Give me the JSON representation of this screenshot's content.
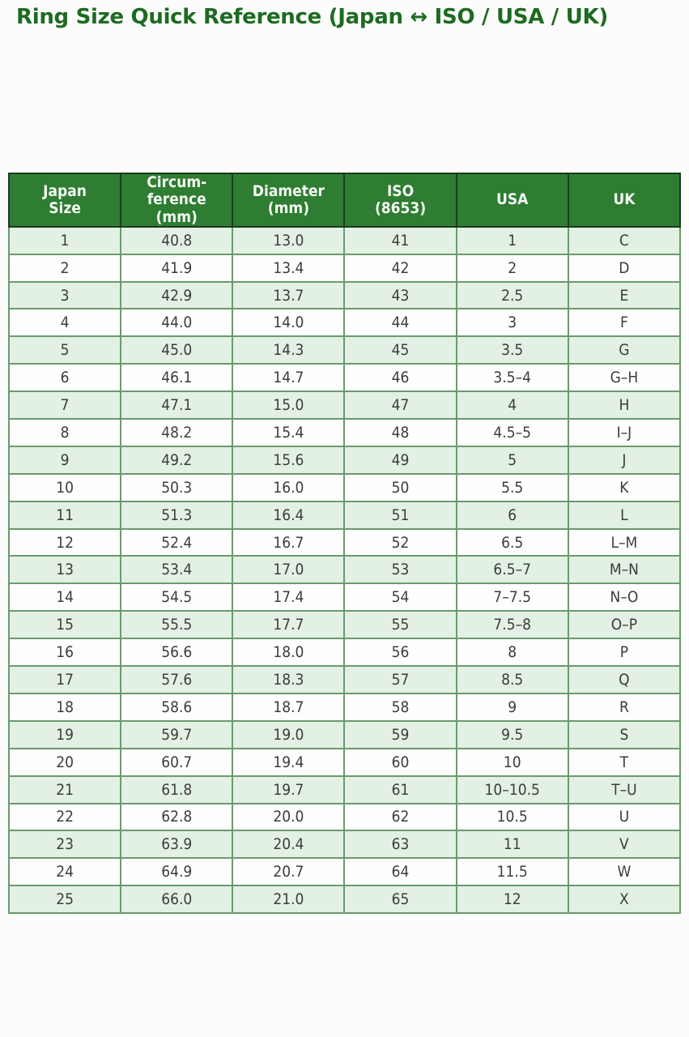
{
  "page_title": "Ring Size Quick Reference (Japan ↔ ISO / USA / UK)",
  "colors": {
    "page_bg": "#fcfcfc",
    "title_color": "#1d6b21",
    "header_bg": "#2e7d32",
    "header_text": "#f4faf3",
    "row_alt": "#e2f1e4",
    "row_plain": "#fdfefd",
    "border_dark": "#1c3a20",
    "border_light": "#6b9a6f",
    "cell_text": "#3c3c3c"
  },
  "chart_data": {
    "type": "table",
    "title": "Ring Size Quick Reference (Japan ↔ ISO / USA / UK)",
    "columns": [
      "Japan Size",
      "Circumference (mm)",
      "Diameter (mm)",
      "ISO (8653)",
      "USA",
      "UK"
    ],
    "header_display": [
      "Japan\nSize",
      "Circum-\nference\n(mm)",
      "Diameter\n(mm)",
      "ISO\n(8653)",
      "USA",
      "UK"
    ],
    "rows": [
      [
        "1",
        "40.8",
        "13.0",
        "41",
        "1",
        "C"
      ],
      [
        "2",
        "41.9",
        "13.4",
        "42",
        "2",
        "D"
      ],
      [
        "3",
        "42.9",
        "13.7",
        "43",
        "2.5",
        "E"
      ],
      [
        "4",
        "44.0",
        "14.0",
        "44",
        "3",
        "F"
      ],
      [
        "5",
        "45.0",
        "14.3",
        "45",
        "3.5",
        "G"
      ],
      [
        "6",
        "46.1",
        "14.7",
        "46",
        "3.5–4",
        "G–H"
      ],
      [
        "7",
        "47.1",
        "15.0",
        "47",
        "4",
        "H"
      ],
      [
        "8",
        "48.2",
        "15.4",
        "48",
        "4.5–5",
        "I–J"
      ],
      [
        "9",
        "49.2",
        "15.6",
        "49",
        "5",
        "J"
      ],
      [
        "10",
        "50.3",
        "16.0",
        "50",
        "5.5",
        "K"
      ],
      [
        "11",
        "51.3",
        "16.4",
        "51",
        "6",
        "L"
      ],
      [
        "12",
        "52.4",
        "16.7",
        "52",
        "6.5",
        "L–M"
      ],
      [
        "13",
        "53.4",
        "17.0",
        "53",
        "6.5–7",
        "M–N"
      ],
      [
        "14",
        "54.5",
        "17.4",
        "54",
        "7–7.5",
        "N–O"
      ],
      [
        "15",
        "55.5",
        "17.7",
        "55",
        "7.5–8",
        "O–P"
      ],
      [
        "16",
        "56.6",
        "18.0",
        "56",
        "8",
        "P"
      ],
      [
        "17",
        "57.6",
        "18.3",
        "57",
        "8.5",
        "Q"
      ],
      [
        "18",
        "58.6",
        "18.7",
        "58",
        "9",
        "R"
      ],
      [
        "19",
        "59.7",
        "19.0",
        "59",
        "9.5",
        "S"
      ],
      [
        "20",
        "60.7",
        "19.4",
        "60",
        "10",
        "T"
      ],
      [
        "21",
        "61.8",
        "19.7",
        "61",
        "10–10.5",
        "T–U"
      ],
      [
        "22",
        "62.8",
        "20.0",
        "62",
        "10.5",
        "U"
      ],
      [
        "23",
        "63.9",
        "20.4",
        "63",
        "11",
        "V"
      ],
      [
        "24",
        "64.9",
        "20.7",
        "64",
        "11.5",
        "W"
      ],
      [
        "25",
        "66.0",
        "21.0",
        "65",
        "12",
        "X"
      ]
    ],
    "layout": {
      "striped": true,
      "stripe_rows": "odd",
      "legend": false,
      "grid": true
    }
  }
}
